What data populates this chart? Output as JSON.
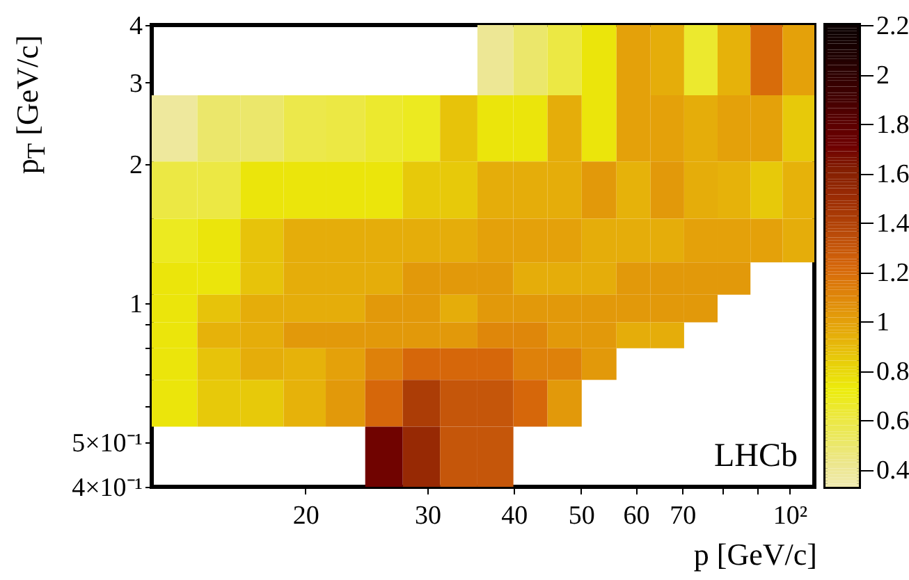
{
  "chart_data": {
    "type": "heatmap",
    "xlabel": "p [GeV/c]",
    "ylabel": "p$_{T}$ [GeV/c]",
    "log": "xy",
    "grid": false,
    "x": [
      13,
      15,
      17.3,
      20,
      22.9,
      26,
      29.4,
      33.3,
      37.7,
      42.3,
      47.3,
      53.1,
      59.6,
      66.6,
      74.5,
      83.2,
      92.7,
      103
    ],
    "y": [
      3.35,
      2.37,
      1.73,
      1.34,
      1.12,
      0.97,
      0.85,
      0.75,
      0.62,
      0.47
    ],
    "xlim": [
      12,
      108.6
    ],
    "ylim": [
      0.4,
      4
    ],
    "xticks": [
      20,
      30,
      40,
      50,
      60,
      70,
      {
        "value": 80,
        "label": null
      },
      {
        "value": 90,
        "label": null
      },
      {
        "value": 100,
        "label": "10²"
      }
    ],
    "yticks": [
      {
        "value": 0.4,
        "label": "4×10⁻¹"
      },
      {
        "value": 0.5,
        "label": "5×10⁻¹"
      },
      {
        "value": 0.6,
        "label": null
      },
      {
        "value": 0.7,
        "label": null
      },
      {
        "value": 0.8,
        "label": null
      },
      {
        "value": 0.9,
        "label": null
      },
      1,
      2,
      3,
      4
    ],
    "clim": [
      0.33,
      2.2
    ],
    "cticks": [
      0.4,
      0.6,
      0.8,
      1,
      1.2,
      1.4,
      1.6,
      1.8,
      2,
      2.2
    ],
    "cells": [
      [
        null,
        null,
        null,
        null,
        null,
        null,
        null,
        null,
        0.4,
        0.5,
        0.6,
        0.75,
        1.0,
        0.95,
        0.65,
        0.93,
        1.2,
        1.0
      ],
      [
        0.38,
        0.5,
        0.5,
        0.58,
        0.6,
        0.65,
        0.68,
        0.87,
        0.75,
        0.75,
        0.95,
        0.75,
        1.0,
        1.0,
        0.95,
        1.0,
        1.0,
        0.85
      ],
      [
        0.6,
        0.6,
        0.75,
        0.75,
        0.75,
        0.75,
        0.85,
        0.85,
        0.95,
        0.95,
        0.95,
        1.03,
        0.93,
        1.03,
        0.95,
        0.93,
        0.85,
        0.93
      ],
      [
        0.68,
        0.75,
        0.87,
        0.95,
        0.95,
        0.95,
        0.95,
        0.95,
        1.0,
        1.0,
        1.0,
        0.95,
        0.95,
        0.95,
        1.0,
        1.0,
        1.0,
        0.95
      ],
      [
        0.75,
        0.75,
        0.87,
        0.95,
        0.95,
        0.95,
        1.03,
        1.03,
        1.03,
        0.95,
        0.95,
        0.95,
        1.03,
        1.03,
        1.03,
        1.03,
        null,
        null
      ],
      [
        0.75,
        0.87,
        0.95,
        0.95,
        0.95,
        1.03,
        1.03,
        0.95,
        1.03,
        1.03,
        1.03,
        1.03,
        1.03,
        1.03,
        1.03,
        null,
        null,
        null
      ],
      [
        0.75,
        0.93,
        0.95,
        1.03,
        1.03,
        1.03,
        1.03,
        1.03,
        1.1,
        1.1,
        1.03,
        1.03,
        0.95,
        0.95,
        null,
        null,
        null,
        null
      ],
      [
        0.75,
        0.87,
        0.95,
        0.93,
        1.0,
        1.12,
        1.22,
        1.22,
        1.22,
        1.12,
        1.12,
        1.03,
        null,
        null,
        null,
        null,
        null,
        null
      ],
      [
        0.75,
        0.85,
        0.85,
        0.93,
        1.03,
        1.22,
        1.42,
        1.3,
        1.3,
        1.22,
        1.03,
        null,
        null,
        null,
        null,
        null,
        null,
        null
      ],
      [
        null,
        null,
        null,
        null,
        null,
        1.7,
        1.52,
        1.3,
        1.3,
        null,
        null,
        null,
        null,
        null,
        null,
        null,
        null,
        null
      ]
    ],
    "annotations": [
      "LHCb"
    ]
  }
}
